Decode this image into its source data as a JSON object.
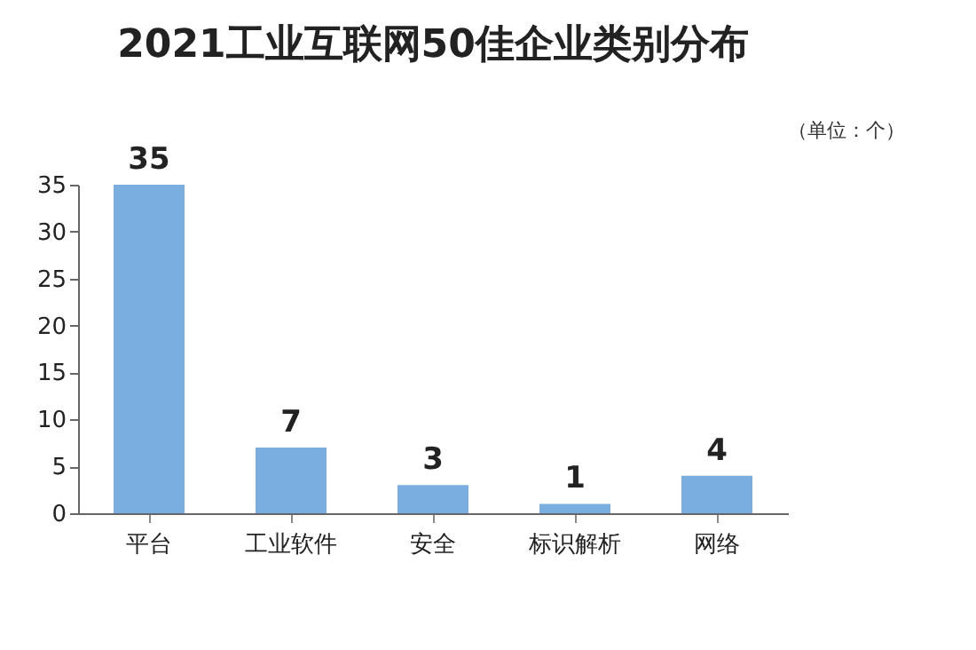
{
  "chart_data": {
    "type": "bar",
    "title": "2021工业互联网50佳企业类别分布",
    "categories": [
      "平台",
      "工业软件",
      "安全",
      "标识解析",
      "网络"
    ],
    "values": [
      35,
      7,
      3,
      1,
      4
    ],
    "color": "#7aaee0",
    "ylim": [
      0,
      35
    ],
    "yticks": [
      0,
      5,
      10,
      15,
      20,
      25,
      30,
      35
    ],
    "grid": false,
    "data_labels": true,
    "annotations": [
      "（单位：个）"
    ]
  }
}
